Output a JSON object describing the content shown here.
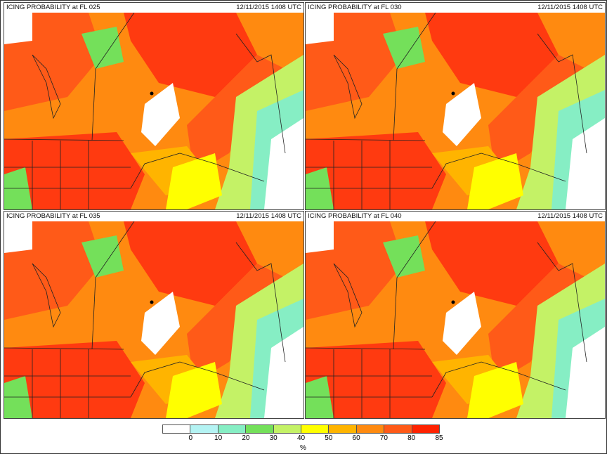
{
  "panels": [
    {
      "title": "ICING PROBABILITY at FL 025",
      "time": "12/11/2015 1408 UTC"
    },
    {
      "title": "ICING PROBABILITY at FL 030",
      "time": "12/11/2015 1408 UTC"
    },
    {
      "title": "ICING PROBABILITY at FL 035",
      "time": "12/11/2015 1408 UTC"
    },
    {
      "title": "ICING PROBABILITY at FL 040",
      "time": "12/11/2015 1408 UTC"
    }
  ],
  "legend": {
    "unit": "%",
    "colors": [
      "#ffffff",
      "#b4f3f3",
      "#86eec4",
      "#74e05a",
      "#c4f266",
      "#ffff00",
      "#ffb400",
      "#ff8a10",
      "#ff5a18",
      "#ff2200"
    ],
    "ticks": [
      "0",
      "10",
      "20",
      "30",
      "40",
      "50",
      "60",
      "70",
      "80",
      "85"
    ]
  }
}
